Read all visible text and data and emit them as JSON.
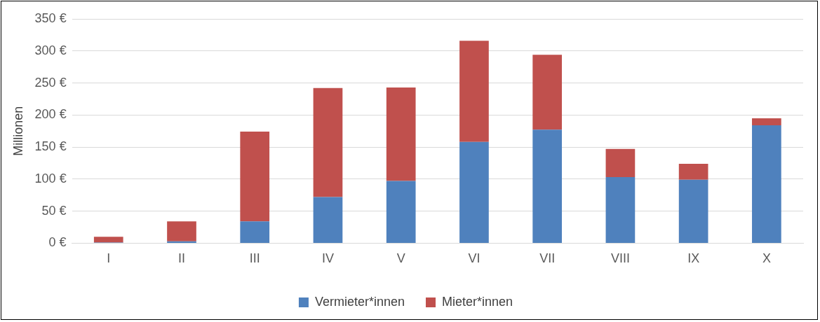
{
  "chart_data": {
    "type": "bar",
    "stacked": true,
    "ylabel": "Millionen",
    "categories": [
      "I",
      "II",
      "III",
      "IV",
      "V",
      "VI",
      "VII",
      "VIII",
      "IX",
      "X"
    ],
    "series": [
      {
        "name": "Vermieter*innen",
        "color": "#4f81bd",
        "values": [
          1,
          3,
          34,
          72,
          97,
          158,
          177,
          103,
          99,
          184
        ]
      },
      {
        "name": "Mieter*innen",
        "color": "#c0504d",
        "values": [
          9,
          31,
          140,
          170,
          146,
          158,
          117,
          44,
          25,
          11
        ]
      }
    ],
    "ylim": [
      0,
      350
    ],
    "yticks": [
      {
        "value": 0,
        "label": "0 €"
      },
      {
        "value": 50,
        "label": "50 €"
      },
      {
        "value": 100,
        "label": "100 €"
      },
      {
        "value": 150,
        "label": "150 €"
      },
      {
        "value": 200,
        "label": "200 €"
      },
      {
        "value": 250,
        "label": "250 €"
      },
      {
        "value": 300,
        "label": "300 €"
      },
      {
        "value": 350,
        "label": "350 €"
      }
    ],
    "grid": "y",
    "legend": "bottom"
  }
}
